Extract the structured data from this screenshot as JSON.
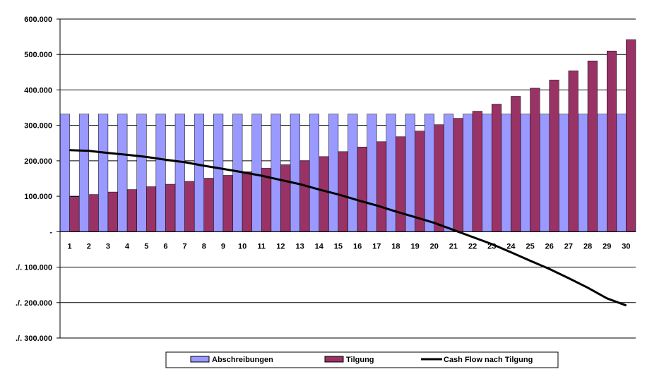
{
  "chart_data": {
    "type": "bar",
    "title": "",
    "xlabel": "",
    "ylabel": "",
    "ylim": [
      -300000,
      600000
    ],
    "categories": [
      "1",
      "2",
      "3",
      "4",
      "5",
      "6",
      "7",
      "8",
      "9",
      "10",
      "11",
      "12",
      "13",
      "14",
      "15",
      "16",
      "17",
      "18",
      "19",
      "20",
      "21",
      "22",
      "23",
      "24",
      "25",
      "26",
      "27",
      "28",
      "29",
      "30"
    ],
    "y_ticks": [
      {
        "value": 600000,
        "label": "600.000"
      },
      {
        "value": 500000,
        "label": "500.000"
      },
      {
        "value": 400000,
        "label": "400.000"
      },
      {
        "value": 300000,
        "label": "300.000"
      },
      {
        "value": 200000,
        "label": "200.000"
      },
      {
        "value": 100000,
        "label": "100.000"
      },
      {
        "value": 0,
        "label": "-"
      },
      {
        "value": -100000,
        "label": "./. 100.000"
      },
      {
        "value": -200000,
        "label": "./. 200.000"
      },
      {
        "value": -300000,
        "label": "./. 300.000"
      }
    ],
    "series": [
      {
        "name": "Abschreibungen",
        "kind": "bar",
        "color": "#9999ff",
        "values": [
          332000,
          332000,
          332000,
          332000,
          332000,
          332000,
          332000,
          332000,
          332000,
          332000,
          332000,
          332000,
          332000,
          332000,
          332000,
          332000,
          332000,
          332000,
          332000,
          332000,
          332000,
          332000,
          332000,
          332000,
          332000,
          332000,
          332000,
          332000,
          332000,
          332000
        ]
      },
      {
        "name": "Tilgung",
        "kind": "bar",
        "color": "#993366",
        "values": [
          99000,
          105000,
          112000,
          119000,
          127000,
          134000,
          142000,
          151000,
          159000,
          169000,
          179000,
          189000,
          200000,
          212000,
          226000,
          239000,
          254000,
          268000,
          284000,
          302000,
          320000,
          340000,
          360000,
          382000,
          405000,
          428000,
          454000,
          482000,
          510000,
          542000
        ]
      },
      {
        "name": "Cash Flow nach Tilgung",
        "kind": "line",
        "color": "#000000",
        "values": [
          230000,
          228000,
          222000,
          217000,
          211000,
          203000,
          196000,
          186000,
          177000,
          168000,
          158000,
          146000,
          134000,
          119000,
          105000,
          89000,
          74000,
          57000,
          41000,
          25000,
          5000,
          -15000,
          -35000,
          -58000,
          -82000,
          -105000,
          -131000,
          -158000,
          -188000,
          -208000
        ]
      }
    ],
    "legend_position": "bottom",
    "grid": true
  }
}
